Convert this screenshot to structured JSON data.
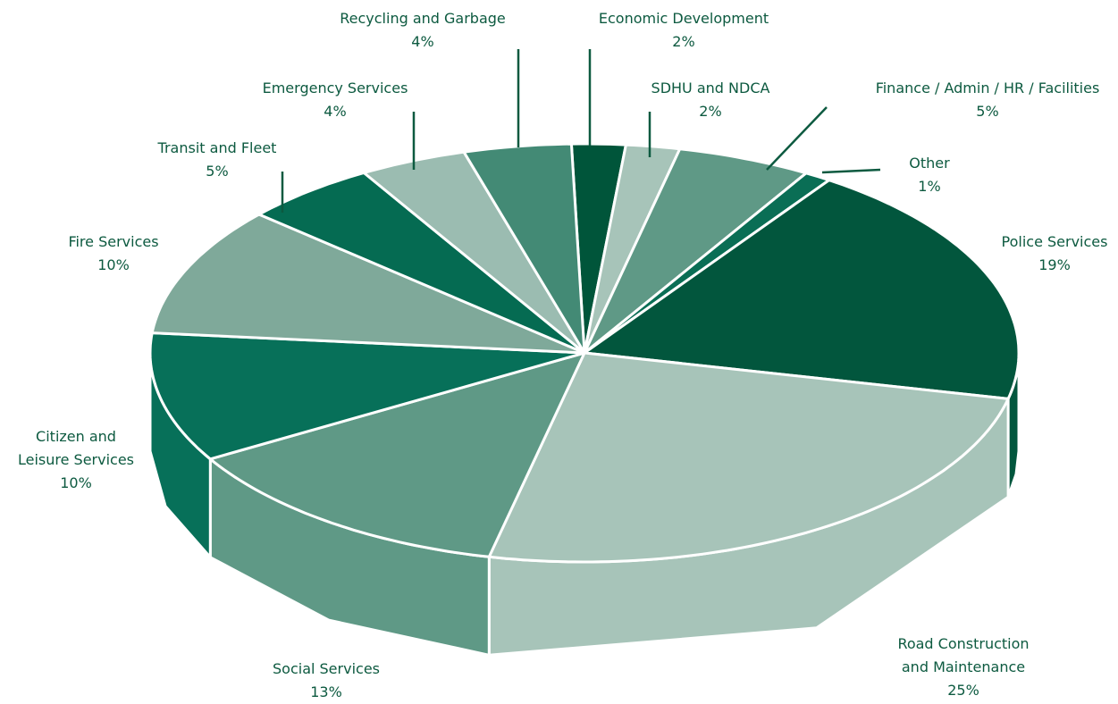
{
  "chart_data": {
    "type": "pie",
    "categories": [
      "Economic Development",
      "SDHU and NDCA",
      "Finance / Admin / HR / Facilities",
      "Other",
      "Police Services",
      "Road Construction and Maintenance",
      "Social Services",
      "Citizen and Leisure Services",
      "Fire Services",
      "Transit and Fleet",
      "Emergency Services",
      "Recycling and Garbage"
    ],
    "values": [
      2,
      2,
      5,
      1,
      19,
      25,
      13,
      10,
      10,
      5,
      4,
      4
    ],
    "value_labels": [
      "2%",
      "2%",
      "5%",
      "1%",
      "19%",
      "25%",
      "13%",
      "10%",
      "10%",
      "5%",
      "4%",
      "4%"
    ],
    "colors": [
      "#00553a",
      "#a7c4b9",
      "#5f9986",
      "#0a6e55",
      "#02563d",
      "#a7c4b9",
      "#5f9986",
      "#077059",
      "#7fa99a",
      "#056b52",
      "#9bbcb1",
      "#438a75"
    ]
  }
}
